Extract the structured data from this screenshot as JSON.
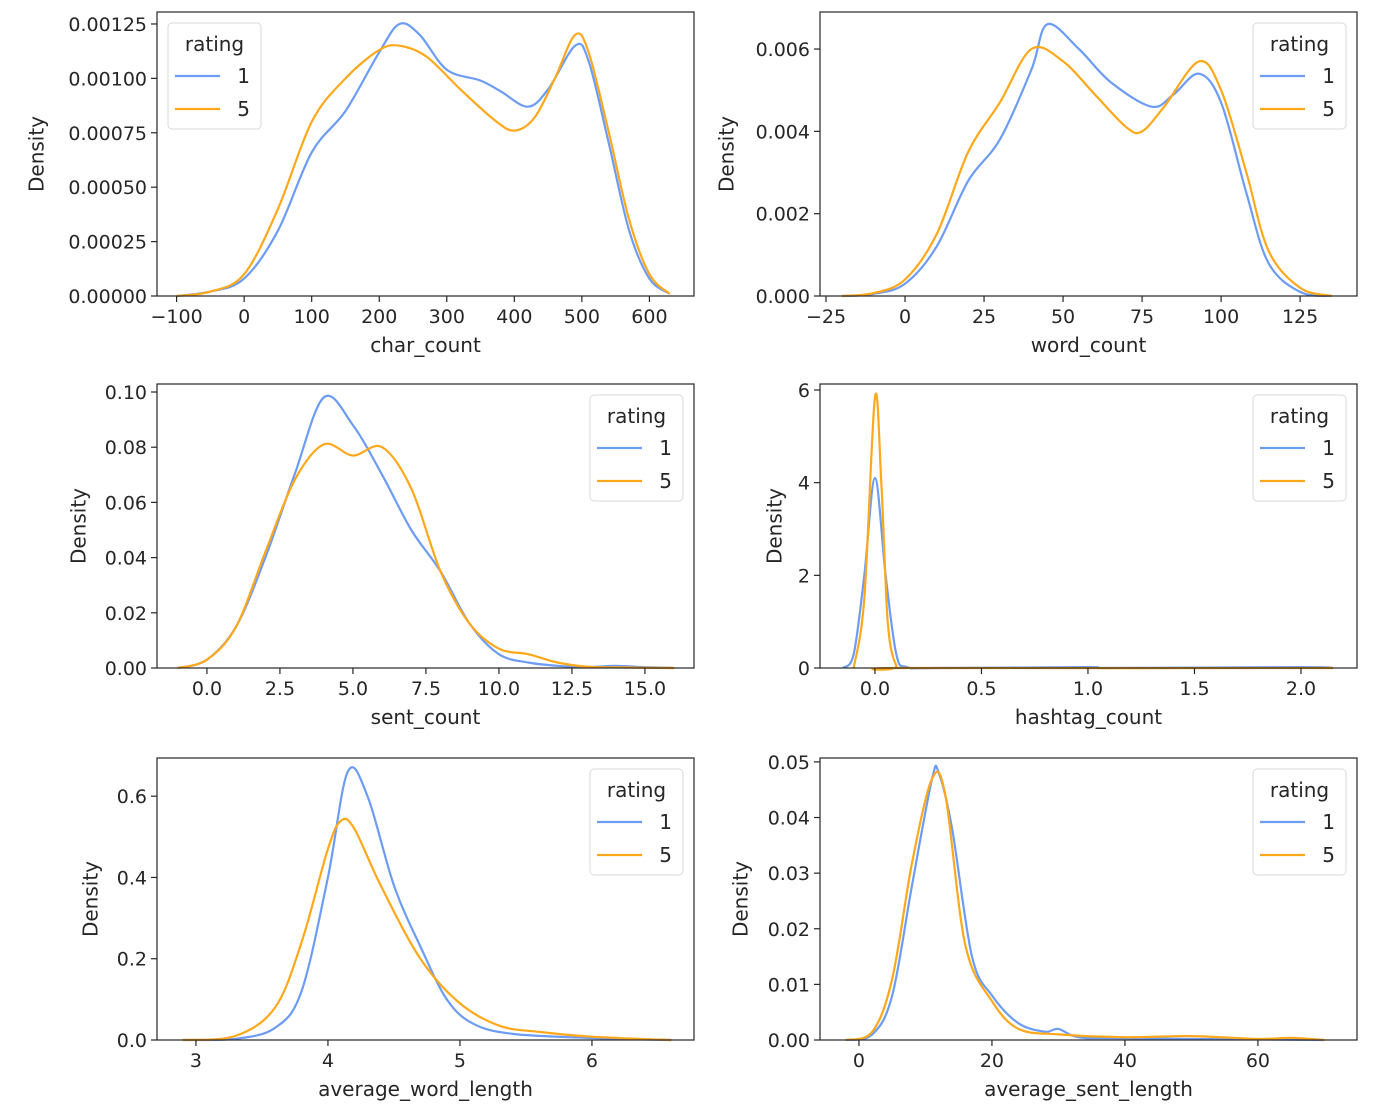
{
  "chart_data": [
    {
      "type": "line",
      "xlabel": "char_count",
      "ylabel": "Density",
      "xlim": [
        -129,
        666
      ],
      "ylim": [
        0,
        0.001305
      ],
      "xticks": [
        -100,
        0,
        100,
        200,
        300,
        400,
        500,
        600
      ],
      "xtick_labels": [
        "−100",
        "0",
        "100",
        "200",
        "300",
        "400",
        "500",
        "600"
      ],
      "yticks": [
        0,
        0.00025,
        0.0005,
        0.00075,
        0.001,
        0.00125
      ],
      "ytick_labels": [
        "0.00000",
        "0.00025",
        "0.00050",
        "0.00075",
        "0.00100",
        "0.00125"
      ],
      "legend": {
        "title": "rating",
        "placement": "upper-left"
      },
      "series": [
        {
          "name": "1",
          "color": "#6d9cf5",
          "x": [
            -100,
            -50,
            0,
            50,
            100,
            150,
            200,
            230,
            260,
            300,
            350,
            380,
            420,
            450,
            490,
            510,
            540,
            570,
            600,
            630
          ],
          "y": [
            0,
            2e-05,
            8e-05,
            0.0003,
            0.00066,
            0.00085,
            0.00112,
            0.00125,
            0.0012,
            0.00104,
            0.00099,
            0.00094,
            0.00087,
            0.00095,
            0.00115,
            0.00108,
            0.0007,
            0.0003,
            8e-05,
            1e-05
          ]
        },
        {
          "name": "5",
          "color": "#ffa81c",
          "x": [
            -100,
            -50,
            0,
            50,
            100,
            150,
            200,
            230,
            270,
            320,
            370,
            400,
            430,
            460,
            490,
            510,
            540,
            570,
            600,
            630
          ],
          "y": [
            0,
            2e-05,
            0.0001,
            0.0004,
            0.0008,
            0.001,
            0.00113,
            0.00115,
            0.0011,
            0.00095,
            0.00081,
            0.00076,
            0.00082,
            0.001,
            0.0012,
            0.00112,
            0.00075,
            0.00035,
            0.0001,
            1e-05
          ]
        }
      ]
    },
    {
      "type": "line",
      "xlabel": "word_count",
      "ylabel": "Density",
      "xlim": [
        -26.9,
        143
      ],
      "ylim": [
        0,
        0.0069
      ],
      "xticks": [
        -25,
        0,
        25,
        50,
        75,
        100,
        125
      ],
      "xtick_labels": [
        "−25",
        "0",
        "25",
        "50",
        "75",
        "100",
        "125"
      ],
      "yticks": [
        0,
        0.002,
        0.004,
        0.006
      ],
      "ytick_labels": [
        "0.000",
        "0.002",
        "0.004",
        "0.006"
      ],
      "legend": {
        "title": "rating",
        "placement": "upper-right"
      },
      "series": [
        {
          "name": "1",
          "color": "#6d9cf5",
          "x": [
            -20,
            -10,
            0,
            10,
            20,
            30,
            40,
            45,
            55,
            65,
            78,
            85,
            93,
            100,
            108,
            115,
            125,
            135
          ],
          "y": [
            0,
            5e-05,
            0.0003,
            0.0012,
            0.0028,
            0.0038,
            0.0055,
            0.0066,
            0.006,
            0.0052,
            0.0046,
            0.0049,
            0.0054,
            0.0047,
            0.0025,
            0.0008,
            0.0001,
            0
          ]
        },
        {
          "name": "5",
          "color": "#ffa81c",
          "x": [
            -20,
            -10,
            0,
            10,
            20,
            30,
            40,
            50,
            60,
            70,
            75,
            82,
            93,
            100,
            108,
            115,
            125,
            135
          ],
          "y": [
            0,
            7e-05,
            0.0004,
            0.0015,
            0.0035,
            0.0047,
            0.006,
            0.0057,
            0.0049,
            0.0041,
            0.004,
            0.0046,
            0.0057,
            0.005,
            0.003,
            0.0011,
            0.0002,
            0
          ]
        }
      ]
    },
    {
      "type": "line",
      "xlabel": "sent_count",
      "ylabel": "Density",
      "xlim": [
        -1.71,
        16.68
      ],
      "ylim": [
        0,
        0.1029
      ],
      "xticks": [
        0,
        2.5,
        5,
        7.5,
        10,
        12.5,
        15
      ],
      "xtick_labels": [
        "0.0",
        "2.5",
        "5.0",
        "7.5",
        "10.0",
        "12.5",
        "15.0"
      ],
      "yticks": [
        0,
        0.02,
        0.04,
        0.06,
        0.08,
        0.1
      ],
      "ytick_labels": [
        "0.00",
        "0.02",
        "0.04",
        "0.06",
        "0.08",
        "0.10"
      ],
      "legend": {
        "title": "rating",
        "placement": "upper-right"
      },
      "series": [
        {
          "name": "1",
          "color": "#6d9cf5",
          "x": [
            -1,
            0,
            1,
            2,
            3,
            4,
            5,
            6,
            7,
            8,
            9,
            10,
            11,
            12,
            13,
            14,
            15,
            16
          ],
          "y": [
            0,
            0.003,
            0.015,
            0.04,
            0.07,
            0.098,
            0.088,
            0.07,
            0.05,
            0.035,
            0.016,
            0.005,
            0.002,
            0.0008,
            0.0003,
            0.0008,
            0.0003,
            0
          ]
        },
        {
          "name": "5",
          "color": "#ffa81c",
          "x": [
            -1,
            0,
            1,
            2,
            3,
            4,
            5,
            6,
            7,
            8,
            9,
            10,
            11,
            12,
            13,
            14,
            16
          ],
          "y": [
            0,
            0.003,
            0.015,
            0.042,
            0.068,
            0.081,
            0.077,
            0.08,
            0.065,
            0.035,
            0.016,
            0.007,
            0.005,
            0.002,
            0.0005,
            0.0002,
            0
          ]
        }
      ]
    },
    {
      "type": "line",
      "xlabel": "hashtag_count",
      "ylabel": "Density",
      "xlim": [
        -0.258,
        2.263
      ],
      "ylim": [
        0,
        6.13
      ],
      "xticks": [
        0,
        0.5,
        1,
        1.5,
        2
      ],
      "xtick_labels": [
        "0.0",
        "0.5",
        "1.0",
        "1.5",
        "2.0"
      ],
      "yticks": [
        0,
        2,
        4,
        6
      ],
      "ytick_labels": [
        "0",
        "2",
        "4",
        "6"
      ],
      "legend": {
        "title": "rating",
        "placement": "upper-right"
      },
      "series": [
        {
          "name": "1",
          "color": "#6d9cf5",
          "x": [
            -0.15,
            -0.1,
            -0.05,
            0,
            0.05,
            0.1,
            0.15,
            0.3,
            1.0,
            1.1,
            2.0,
            2.15
          ],
          "y": [
            0,
            0.3,
            2.0,
            4.1,
            2.0,
            0.3,
            0.02,
            0,
            0.02,
            0,
            0.02,
            0
          ]
        },
        {
          "name": "5",
          "color": "#ffa81c",
          "x": [
            -0.1,
            -0.05,
            0,
            0.03,
            0.06,
            0.1,
            0.15,
            2.15
          ],
          "y": [
            0,
            1.5,
            5.85,
            4,
            1.0,
            0.05,
            0,
            0
          ]
        }
      ]
    },
    {
      "type": "line",
      "xlabel": "average_word_length",
      "ylabel": "Density",
      "xlim": [
        2.705,
        6.773
      ],
      "ylim": [
        0,
        0.694
      ],
      "xticks": [
        3,
        4,
        5,
        6
      ],
      "xtick_labels": [
        "3",
        "4",
        "5",
        "6"
      ],
      "yticks": [
        0,
        0.2,
        0.4,
        0.6
      ],
      "ytick_labels": [
        "0.0",
        "0.2",
        "0.4",
        "0.6"
      ],
      "legend": {
        "title": "rating",
        "placement": "upper-right"
      },
      "series": [
        {
          "name": "1",
          "color": "#6d9cf5",
          "x": [
            2.9,
            3.3,
            3.6,
            3.8,
            4.0,
            4.15,
            4.3,
            4.5,
            4.7,
            4.9,
            5.1,
            5.4,
            6.0,
            6.6
          ],
          "y": [
            0,
            0.003,
            0.03,
            0.12,
            0.4,
            0.66,
            0.6,
            0.38,
            0.23,
            0.1,
            0.04,
            0.015,
            0.005,
            0
          ]
        },
        {
          "name": "5",
          "color": "#ffa81c",
          "x": [
            2.9,
            3.3,
            3.6,
            3.8,
            4.0,
            4.1,
            4.2,
            4.4,
            4.7,
            5.0,
            5.3,
            5.6,
            6.0,
            6.6
          ],
          "y": [
            0,
            0.01,
            0.08,
            0.24,
            0.47,
            0.54,
            0.52,
            0.38,
            0.2,
            0.09,
            0.035,
            0.02,
            0.008,
            0
          ]
        }
      ]
    },
    {
      "type": "line",
      "xlabel": "average_sent_length",
      "ylabel": "Density",
      "xlim": [
        -5.86,
        74.9
      ],
      "ylim": [
        0,
        0.0507
      ],
      "xticks": [
        0,
        20,
        40,
        60
      ],
      "xtick_labels": [
        "0",
        "20",
        "40",
        "60"
      ],
      "yticks": [
        0,
        0.01,
        0.02,
        0.03,
        0.04,
        0.05
      ],
      "ytick_labels": [
        "0.00",
        "0.01",
        "0.02",
        "0.03",
        "0.04",
        "0.05"
      ],
      "legend": {
        "title": "rating",
        "placement": "upper-right"
      },
      "series": [
        {
          "name": "1",
          "color": "#6d9cf5",
          "x": [
            -2,
            2,
            5,
            8,
            11,
            12,
            14,
            17,
            20,
            24,
            28,
            30,
            33,
            40,
            70
          ],
          "y": [
            0,
            0.001,
            0.008,
            0.028,
            0.047,
            0.048,
            0.038,
            0.015,
            0.008,
            0.003,
            0.0015,
            0.002,
            0.0005,
            0.0003,
            0
          ]
        },
        {
          "name": "5",
          "color": "#ffa81c",
          "x": [
            -2,
            2,
            5,
            8,
            11,
            13,
            16,
            20,
            24,
            30,
            40,
            50,
            60,
            65,
            70
          ],
          "y": [
            0,
            0.0015,
            0.011,
            0.032,
            0.047,
            0.044,
            0.017,
            0.007,
            0.002,
            0.001,
            0.0005,
            0.0007,
            0.0002,
            0.0004,
            0
          ]
        }
      ]
    }
  ]
}
